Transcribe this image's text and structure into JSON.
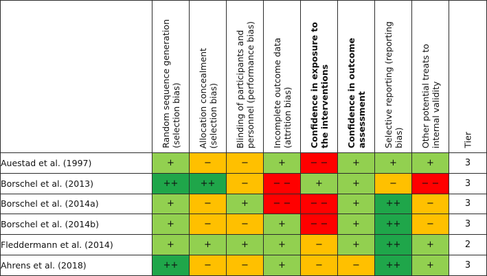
{
  "colors": {
    "++": "#1fa64a",
    "+": "#92d050",
    "-": "#ffc000",
    "--": "#ff0000"
  },
  "columns": [
    {
      "id": "random-sequence",
      "label": "Random sequence generation\n(selection bias)",
      "bold": false
    },
    {
      "id": "allocation",
      "label": "Allocation concealment\n(selection bias)",
      "bold": false
    },
    {
      "id": "blinding",
      "label": "Blinding of participants and\npersonnel (performance bias)",
      "bold": false
    },
    {
      "id": "incomplete",
      "label": "Incomplete outcome data\n(attrition bias)",
      "bold": false
    },
    {
      "id": "confidence-exposure",
      "label": "Confidence in exposure to\nthe interventions",
      "bold": true
    },
    {
      "id": "confidence-outcome",
      "label": "Confidence in outcome\nassessment",
      "bold": true
    },
    {
      "id": "selective",
      "label": "Selective reporting (reporting\nbias)",
      "bold": false
    },
    {
      "id": "other",
      "label": "Other potential treats to\ninternal validity",
      "bold": false
    },
    {
      "id": "tier",
      "label": "Tier",
      "bold": false
    }
  ],
  "rows": [
    {
      "study": "Auestad et al. (1997)",
      "ratings": [
        "+",
        "−",
        "−",
        "+",
        "− −",
        "+",
        "+",
        "+"
      ],
      "tier": "3"
    },
    {
      "study": "Borschel et al. (2013)",
      "ratings": [
        "++",
        "++",
        "−",
        "− −",
        "+",
        "+",
        "−",
        "− −"
      ],
      "tier": "3"
    },
    {
      "study": "Borschel et al. (2014a)",
      "ratings": [
        "+",
        "−",
        "+",
        "− −",
        "− −",
        "+",
        "++",
        "−"
      ],
      "tier": "3"
    },
    {
      "study": "Borschel et al. (2014b)",
      "ratings": [
        "+",
        "−",
        "−",
        "+",
        "− −",
        "+",
        "++",
        "−"
      ],
      "tier": "3"
    },
    {
      "study": "Fleddermann et al. (2014)",
      "ratings": [
        "+",
        "+",
        "+",
        "+",
        "−",
        "+",
        "++",
        "+"
      ],
      "tier": "2"
    },
    {
      "study": "Ahrens et al. (2018)",
      "ratings": [
        "++",
        "−",
        "−",
        "+",
        "−",
        "−",
        "++",
        "+"
      ],
      "tier": "3"
    }
  ]
}
